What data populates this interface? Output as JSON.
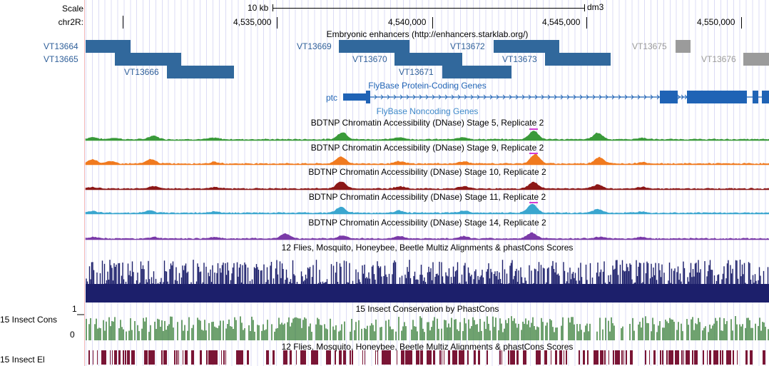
{
  "ruler": {
    "scale_label": "Scale",
    "scale_value": "10 kb",
    "assembly": "dm3",
    "chrom_label": "chr2R:",
    "positions": [
      "4,535,000",
      "4,540,000",
      "4,545,000",
      "4,550,000"
    ]
  },
  "enhancers": {
    "title": "Embryonic enhancers (http://enhancers.starklab.org/)",
    "items": [
      {
        "name": "VT13664",
        "active": true
      },
      {
        "name": "VT13665",
        "active": true
      },
      {
        "name": "VT13666",
        "active": true
      },
      {
        "name": "VT13669",
        "active": true
      },
      {
        "name": "VT13670",
        "active": true
      },
      {
        "name": "VT13671",
        "active": true
      },
      {
        "name": "VT13672",
        "active": true
      },
      {
        "name": "VT13673",
        "active": true
      },
      {
        "name": "VT13675",
        "active": false
      },
      {
        "name": "VT13676",
        "active": false
      }
    ]
  },
  "genes": {
    "protein_title": "FlyBase Protein-Coding Genes",
    "gene_name": "ptc",
    "noncoding_title": "FlyBase Noncoding Genes"
  },
  "dnase": [
    {
      "title": "BDTNP Chromatin Accessibility (DNase) Stage 5, Replicate 2",
      "color": "#3a9a3a"
    },
    {
      "title": "BDTNP Chromatin Accessibility (DNase) Stage 9, Replicate 2",
      "color": "#f07a1f"
    },
    {
      "title": "BDTNP Chromatin Accessibility (DNase) Stage 10, Replicate 2",
      "color": "#8c1818"
    },
    {
      "title": "BDTNP Chromatin Accessibility (DNase) Stage 11, Replicate 2",
      "color": "#3aa6cf"
    },
    {
      "title": "BDTNP Chromatin Accessibility (DNase) Stage 14, Replicate 2",
      "color": "#7a3aa8"
    }
  ],
  "multiz": {
    "title": "12 Flies, Mosquito, Honeybee, Beetle Multiz Alignments & phastCons Scores",
    "color": "#1c1f6b"
  },
  "conservation": {
    "label": "15 Insect Cons",
    "title": "15 Insect Conservation by PhastCons",
    "axis_max": "1",
    "axis_min": "0",
    "color": "#4b8a4b"
  },
  "elements": {
    "label": "15 Insect El",
    "title": "12 Flies, Mosquito, Honeybee, Beetle Multiz Alignments & phastCons Scores",
    "color": "#7a1535"
  },
  "highlight_color": "#d23cd2"
}
